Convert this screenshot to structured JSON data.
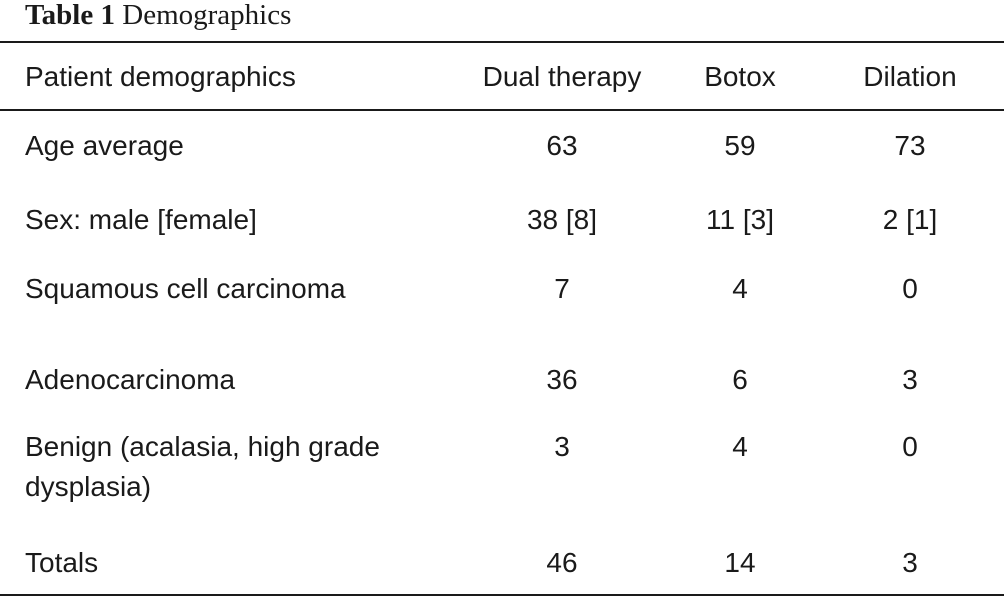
{
  "caption": {
    "label": "Table 1",
    "title": "Demographics"
  },
  "table": {
    "headers": [
      "Patient demographics",
      "Dual therapy",
      "Botox",
      "Dilation"
    ],
    "rows": [
      [
        "Age average",
        "63",
        "59",
        "73"
      ],
      [
        "Sex: male [female]",
        "38 [8]",
        "11 [3]",
        "2 [1]"
      ],
      [
        "Squamous cell carcinoma",
        "7",
        "4",
        "0"
      ],
      [
        "Adenocarcinoma",
        "36",
        "6",
        "3"
      ],
      [
        "Benign (acalasia, high grade dysplasia)",
        "3",
        "4",
        "0"
      ],
      [
        "Totals",
        "46",
        "14",
        "3"
      ]
    ]
  }
}
